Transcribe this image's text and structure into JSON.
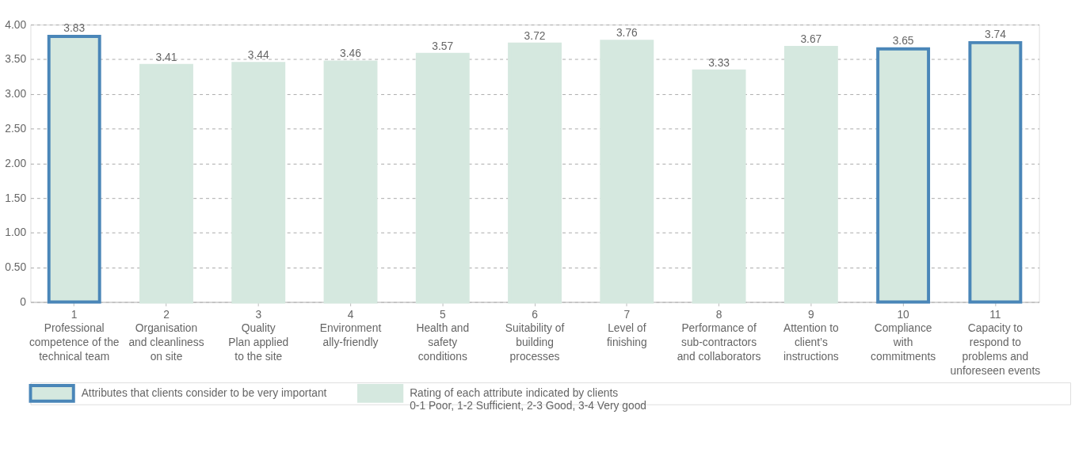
{
  "chart_data": {
    "type": "bar",
    "categories": [
      "1\nProfessional\ncompetence of the\ntechnical team",
      "2\nOrganisation\nand cleanliness\non site",
      "3\nQuality\nPlan applied\nto the site",
      "4\nEnvironment\nally-friendly",
      "5\nHealth and\nsafety\nconditions",
      "6\nSuitability of\nbuilding\nprocesses",
      "7\nLevel of\nfinishing",
      "8\nPerformance of\nsub-contractors\nand collaborators",
      "9\nAttention to\nclient’s\ninstructions",
      "10\nCompliance\nwith\ncommitments",
      "11\nCapacity to\nrespond to\nproblems and\nunforeseen events"
    ],
    "series": [
      {
        "name": "Attributes that clients consider to be very important",
        "color": "#d5e8df",
        "values": [
          3.83,
          null,
          null,
          null,
          null,
          null,
          null,
          null,
          null,
          3.65,
          3.74
        ]
      },
      {
        "name": "Rating of each attribute indicated by clients\n0-1 Poor, 1-2 Sufficient, 2-3 Good, 3-4 Very good",
        "color": "#d5e8df",
        "values": [
          null,
          3.41,
          3.44,
          3.46,
          3.57,
          3.72,
          3.76,
          3.33,
          3.67,
          null,
          null
        ]
      }
    ],
    "ylim": [
      0,
      4
    ],
    "yticks": [
      0,
      {
        "value": 0.5,
        "label": "0.50"
      },
      {
        "value": 1,
        "label": "1.00"
      },
      {
        "value": 1.5,
        "label": "1.50"
      },
      {
        "value": 2,
        "label": "2.00"
      },
      {
        "value": 2.5,
        "label": "2.50"
      },
      {
        "value": 3,
        "label": "3.00"
      },
      {
        "value": 3.5,
        "label": "3.50"
      },
      {
        "value": 4,
        "label": "4.00"
      }
    ],
    "grid": "y",
    "data_labels": true,
    "legend": "bottom"
  }
}
